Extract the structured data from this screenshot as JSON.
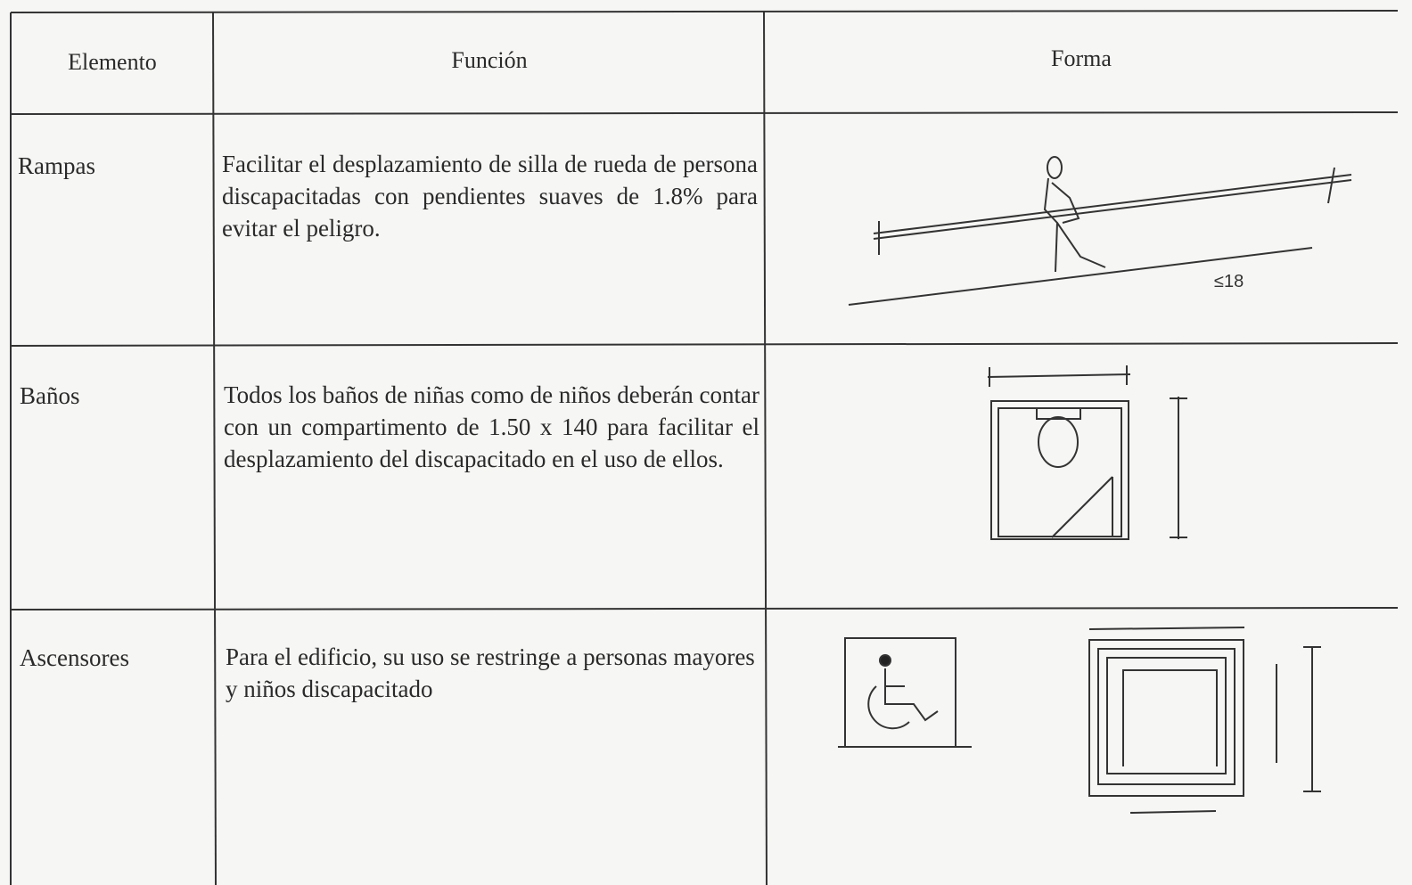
{
  "header": {
    "columns": [
      "Elemento",
      "Función",
      "Forma"
    ]
  },
  "table": {
    "rows": [
      {
        "element": "Rampas",
        "function": "Facilitar el desplazamiento de silla de rueda de persona discapacitadas con pendientes suaves de 1.8% para evitar el peligro.",
        "sketch_label": "≤18"
      },
      {
        "element": "Baños",
        "function": "Todos los baños de niñas como de niños deberán contar con un compartimento de 1.50 x 140 para facilitar el desplazamiento del discapacitado en el uso de ellos."
      },
      {
        "element": "Ascensores",
        "function": "Para el edificio, su uso se restringe a personas mayores y niños discapacitado"
      }
    ]
  }
}
